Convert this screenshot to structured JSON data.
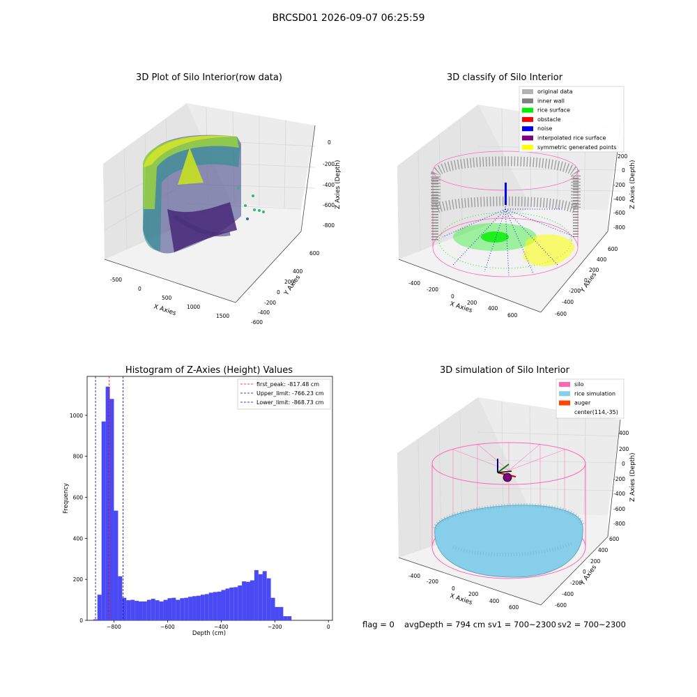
{
  "figure": {
    "title": "BRCSD01 2026-09-07 06:25:59"
  },
  "panels": {
    "raw": {
      "title": "3D Plot of Silo Interior(row data)",
      "xlabel": "X Axies",
      "ylabel": "Y Axies",
      "zlabel": "Z Axies (Depth)",
      "xticks": [
        "-500",
        "0",
        "500",
        "1000",
        "1500"
      ],
      "yticks": [
        "600",
        "400",
        "200",
        "0",
        "-200",
        "-400",
        "-600"
      ],
      "zticks": [
        "0",
        "-200",
        "-400",
        "-600",
        "-800"
      ],
      "colormap": "viridis"
    },
    "classify": {
      "title": "3D classify of Silo Interior",
      "xlabel": "X Axies",
      "ylabel": "Y Axies",
      "zlabel": "Z Axies (Depth)",
      "xticks": [
        "-400",
        "-200",
        "0",
        "200",
        "400",
        "600"
      ],
      "yticks": [
        "600",
        "400",
        "200",
        "0",
        "-200",
        "-400",
        "-600"
      ],
      "zticks": [
        "200",
        "0",
        "-200",
        "-400",
        "-600",
        "-800"
      ],
      "legend": [
        {
          "label": "original data",
          "color": "#b3b3b3"
        },
        {
          "label": "inner wall",
          "color": "#808080"
        },
        {
          "label": "rice surface",
          "color": "#00ee00"
        },
        {
          "label": "obstacle",
          "color": "#ff0000"
        },
        {
          "label": "noise",
          "color": "#0000ee"
        },
        {
          "label": "interpolated rice surface",
          "color": "#800080"
        },
        {
          "label": "symmetric generated points",
          "color": "#ffff00"
        }
      ]
    },
    "histogram": {
      "title": "Histogram of Z-Axies (Height) Values",
      "xlabel": "Depth (cm)",
      "ylabel": "Frequency",
      "xticks": [
        "−800",
        "−600",
        "−400",
        "−200",
        "0"
      ],
      "yticks": [
        "0",
        "200",
        "400",
        "600",
        "800",
        "1000"
      ],
      "legend": [
        {
          "label": "first_peak: -817.48 cm",
          "color": "#ff0000"
        },
        {
          "label": "Upper_limit: -766.23 cm",
          "color": "#0000aa"
        },
        {
          "label": "Lower_limit: -868.73 cm",
          "color": "#0000aa"
        }
      ]
    },
    "simulation": {
      "title": "3D simulation of Silo Interior",
      "xlabel": "X Axies",
      "ylabel": "Y Axies",
      "zlabel": "Z Axies (Depth)",
      "xticks": [
        "-400",
        "-200",
        "0",
        "200",
        "400",
        "600"
      ],
      "yticks": [
        "600",
        "400",
        "200",
        "0",
        "-200",
        "-400",
        "-600"
      ],
      "zticks": [
        "400",
        "200",
        "0",
        "-200",
        "-400",
        "-600",
        "-800"
      ],
      "legend": [
        {
          "label": "silo",
          "color": "#ff69b4"
        },
        {
          "label": "rice simulation",
          "color": "#87ceeb"
        },
        {
          "label": "auger",
          "color": "#ff4500"
        },
        {
          "label": "center(114,-35)",
          "color": ""
        }
      ]
    }
  },
  "footer": {
    "flag": "flag = 0",
    "avg_depth": "avgDepth = 794 cm",
    "sv1": "sv1 = 700~2300",
    "sv2": "sv2 = 700~2300"
  },
  "colors": {
    "histogram_bar": "#4a4af5",
    "peak_line": "#ff0000",
    "limit_line": "#0000aa",
    "silo_wire": "#ff69b4",
    "rice_fill": "#87ceeb"
  },
  "chart_data": [
    {
      "type": "scatter",
      "dimension": "3d",
      "title": "3D Plot of Silo Interior(row data)",
      "xlabel": "X Axies",
      "ylabel": "Y Axies",
      "zlabel": "Z Axies (Depth)",
      "xlim": [
        -600,
        1600
      ],
      "ylim": [
        -650,
        650
      ],
      "zlim": [
        -900,
        0
      ],
      "colormap": "viridis",
      "grid": true
    },
    {
      "type": "scatter",
      "dimension": "3d",
      "title": "3D classify of Silo Interior",
      "xlabel": "X Axies",
      "ylabel": "Y Axies",
      "zlabel": "Z Axies (Depth)",
      "xlim": [
        -500,
        700
      ],
      "ylim": [
        -650,
        650
      ],
      "zlim": [
        -900,
        250
      ],
      "series": [
        {
          "name": "original data"
        },
        {
          "name": "inner wall"
        },
        {
          "name": "rice surface"
        },
        {
          "name": "obstacle"
        },
        {
          "name": "noise"
        },
        {
          "name": "interpolated rice surface"
        },
        {
          "name": "symmetric generated points"
        }
      ],
      "legend_position": "top-right",
      "grid": true
    },
    {
      "type": "bar",
      "title": "Histogram of Z-Axies (Height) Values",
      "xlabel": "Depth (cm)",
      "ylabel": "Frequency",
      "xlim": [
        -900,
        15
      ],
      "ylim": [
        0,
        1190
      ],
      "bin_width": 15.4,
      "bins": [
        {
          "x0": -877,
          "count": 5
        },
        {
          "x0": -861.6,
          "count": 125
        },
        {
          "x0": -846.2,
          "count": 970
        },
        {
          "x0": -830.8,
          "count": 1140
        },
        {
          "x0": -815.4,
          "count": 1080
        },
        {
          "x0": -800.0,
          "count": 535
        },
        {
          "x0": -784.6,
          "count": 215
        },
        {
          "x0": -769.2,
          "count": 110
        },
        {
          "x0": -753.8,
          "count": 98
        },
        {
          "x0": -738.4,
          "count": 100
        },
        {
          "x0": -723.0,
          "count": 95
        },
        {
          "x0": -707.6,
          "count": 92
        },
        {
          "x0": -692.2,
          "count": 92
        },
        {
          "x0": -676.8,
          "count": 100
        },
        {
          "x0": -661.4,
          "count": 105
        },
        {
          "x0": -646.0,
          "count": 98
        },
        {
          "x0": -630.6,
          "count": 92
        },
        {
          "x0": -615.2,
          "count": 100
        },
        {
          "x0": -599.8,
          "count": 108
        },
        {
          "x0": -584.4,
          "count": 110
        },
        {
          "x0": -569.0,
          "count": 100
        },
        {
          "x0": -553.6,
          "count": 108
        },
        {
          "x0": -538.2,
          "count": 110
        },
        {
          "x0": -522.8,
          "count": 115
        },
        {
          "x0": -507.4,
          "count": 118
        },
        {
          "x0": -492.0,
          "count": 120
        },
        {
          "x0": -476.6,
          "count": 125
        },
        {
          "x0": -461.2,
          "count": 128
        },
        {
          "x0": -445.8,
          "count": 135
        },
        {
          "x0": -430.4,
          "count": 138
        },
        {
          "x0": -415.0,
          "count": 140
        },
        {
          "x0": -399.6,
          "count": 148
        },
        {
          "x0": -384.2,
          "count": 155
        },
        {
          "x0": -368.8,
          "count": 160
        },
        {
          "x0": -353.4,
          "count": 162
        },
        {
          "x0": -338.0,
          "count": 170
        },
        {
          "x0": -322.6,
          "count": 190
        },
        {
          "x0": -307.2,
          "count": 188
        },
        {
          "x0": -291.8,
          "count": 195
        },
        {
          "x0": -276.4,
          "count": 245
        },
        {
          "x0": -261.0,
          "count": 225
        },
        {
          "x0": -245.6,
          "count": 240
        },
        {
          "x0": -230.2,
          "count": 205
        },
        {
          "x0": -214.8,
          "count": 110
        },
        {
          "x0": -199.4,
          "count": 65
        },
        {
          "x0": -184.0,
          "count": 65
        },
        {
          "x0": -168.6,
          "count": 20
        },
        {
          "x0": -153.2,
          "count": 20
        }
      ],
      "vlines": [
        {
          "name": "first_peak",
          "x": -817.48,
          "style": "dashed",
          "color": "#ff0000"
        },
        {
          "name": "Upper_limit",
          "x": -766.23,
          "style": "dashed",
          "color": "#0000aa"
        },
        {
          "name": "Lower_limit",
          "x": -868.73,
          "style": "dashed",
          "color": "#0000aa"
        }
      ],
      "legend_position": "top-right",
      "grid": false
    },
    {
      "type": "scatter",
      "dimension": "3d",
      "title": "3D simulation of Silo Interior",
      "xlabel": "X Axies",
      "ylabel": "Y Axies",
      "zlabel": "Z Axies (Depth)",
      "xlim": [
        -500,
        700
      ],
      "ylim": [
        -650,
        650
      ],
      "zlim": [
        -900,
        450
      ],
      "series": [
        {
          "name": "silo"
        },
        {
          "name": "rice simulation"
        },
        {
          "name": "auger"
        },
        {
          "name": "center(114,-35)"
        }
      ],
      "legend_position": "top-right",
      "grid": true
    }
  ]
}
